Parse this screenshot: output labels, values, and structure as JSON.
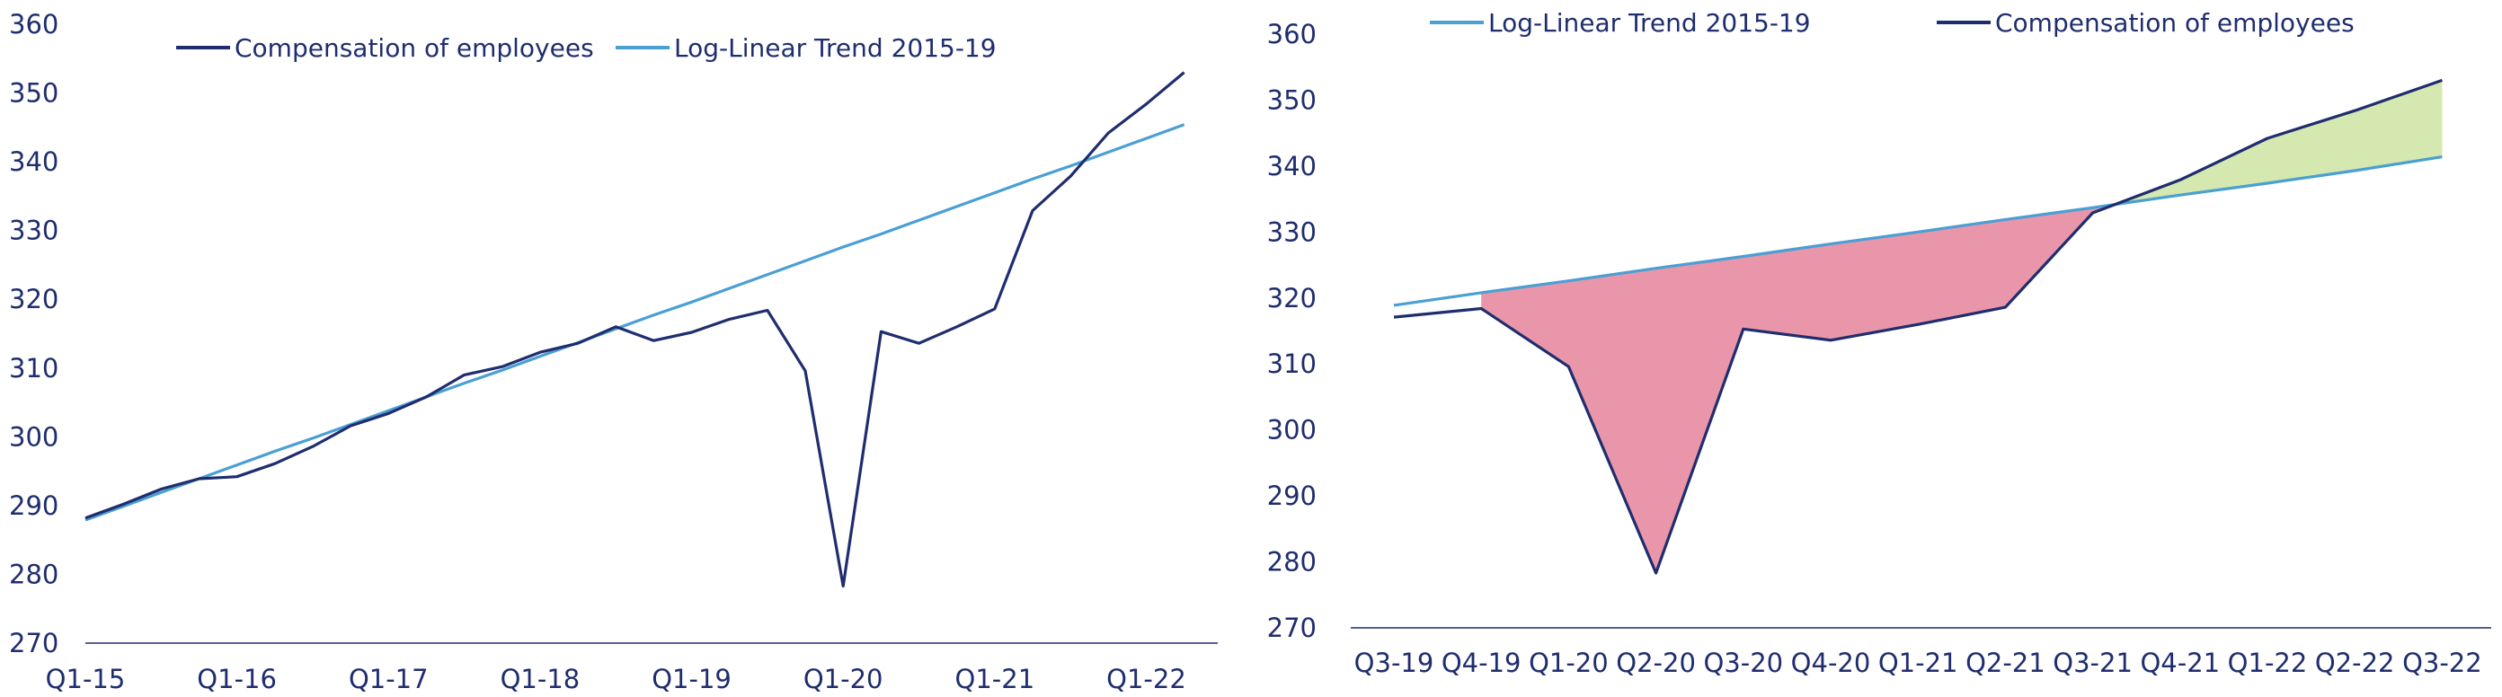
{
  "colors": {
    "comp": "#1f2d6e",
    "trend": "#4a9fd3",
    "neg_fill": "#e996ab",
    "pos_fill": "#d4e8b0",
    "text": "#1f2d6e",
    "axis": "#1f2d6e"
  },
  "chart_data": [
    {
      "type": "line",
      "title": "",
      "xlabel": "",
      "ylabel": "",
      "ylim": [
        270,
        360
      ],
      "yticks": [
        "360",
        "350",
        "340",
        "330",
        "320",
        "310",
        "300",
        "290",
        "280",
        "270"
      ],
      "xticks": [
        "Q1-15",
        "Q1-16",
        "Q1-17",
        "Q1-18",
        "Q1-19",
        "Q1-20",
        "Q1-21",
        "Q1-22"
      ],
      "grid": false,
      "legend_position": "top",
      "legend": [
        "Compensation of employees",
        "Log-Linear Trend 2015-19"
      ],
      "series": [
        {
          "name": "Compensation of employees",
          "values": [
            288.2,
            290.2,
            292.4,
            293.9,
            294.2,
            296.1,
            298.6,
            301.6,
            303.4,
            305.8,
            309.0,
            310.2,
            312.3,
            313.6,
            316.0,
            314.0,
            315.2,
            317.1,
            318.4,
            309.6,
            278.3,
            315.3,
            313.6,
            316.0,
            318.6,
            332.9,
            337.9,
            344.2,
            348.4,
            353.0
          ]
        },
        {
          "name": "Log-Linear Trend 2015-19",
          "values": [
            287.9,
            289.9,
            291.9,
            293.9,
            295.9,
            297.9,
            299.8,
            301.8,
            303.8,
            305.8,
            307.8,
            309.7,
            311.7,
            313.7,
            315.7,
            317.7,
            319.6,
            321.6,
            323.6,
            325.6,
            327.6,
            329.5,
            331.5,
            333.5,
            335.5,
            337.5,
            339.4,
            341.4,
            343.4,
            345.4
          ]
        }
      ]
    },
    {
      "type": "area",
      "title": "",
      "xlabel": "",
      "ylabel": "",
      "ylim": [
        270,
        360
      ],
      "yticks": [
        "360",
        "350",
        "340",
        "330",
        "320",
        "310",
        "300",
        "290",
        "280",
        "270"
      ],
      "categories": [
        "Q3-19",
        "Q4-19",
        "Q1-20",
        "Q2-20",
        "Q3-20",
        "Q4-20",
        "Q1-21",
        "Q2-21",
        "Q3-21",
        "Q4-21",
        "Q1-22",
        "Q2-22",
        "Q3-22"
      ],
      "grid": false,
      "legend_position": "top",
      "legend": [
        "Log-Linear Trend 2015-19",
        "Compensation of employees"
      ],
      "series": [
        {
          "name": "Log-Linear Trend 2015-19",
          "values": [
            318.9,
            320.8,
            322.6,
            324.5,
            326.3,
            328.2,
            330.0,
            331.9,
            333.7,
            335.6,
            337.4,
            339.3,
            341.4
          ]
        },
        {
          "name": "Compensation of employees",
          "values": [
            317.1,
            318.4,
            309.6,
            278.3,
            315.3,
            313.6,
            316.0,
            318.6,
            332.9,
            337.9,
            344.2,
            348.4,
            353.0
          ]
        }
      ]
    }
  ]
}
